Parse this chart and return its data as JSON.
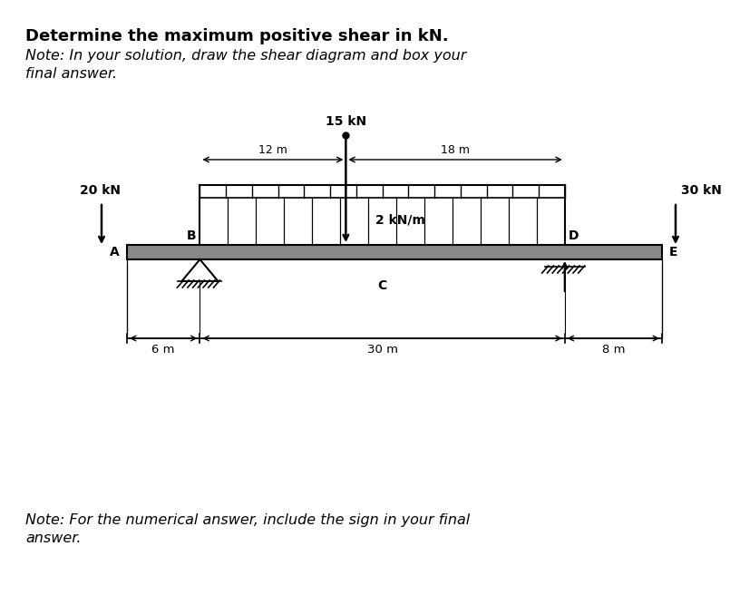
{
  "title_bold": "Determine the maximum positive shear in kN.",
  "note_line1": "Note: In your solution, draw the shear diagram and box your",
  "note_line2": "final answer.",
  "bottom_line1": "Note: For the numerical answer, include the sign in your final",
  "bottom_line2": "answer.",
  "label_A": "A",
  "label_B": "B",
  "label_C": "C",
  "label_D": "D",
  "label_E": "E",
  "load_20kN": "20 kN",
  "load_15kN": "15 kN",
  "load_30kN": "30 kN",
  "dist_load": "2 kN/m",
  "dim_12m": "12 m",
  "dim_18m": "18 m",
  "dim_6m": "6 m",
  "dim_30m": "30 m",
  "dim_8m": "8 m",
  "bg_color": "#ffffff",
  "text_color": "#000000",
  "beam_fill": "#888888"
}
